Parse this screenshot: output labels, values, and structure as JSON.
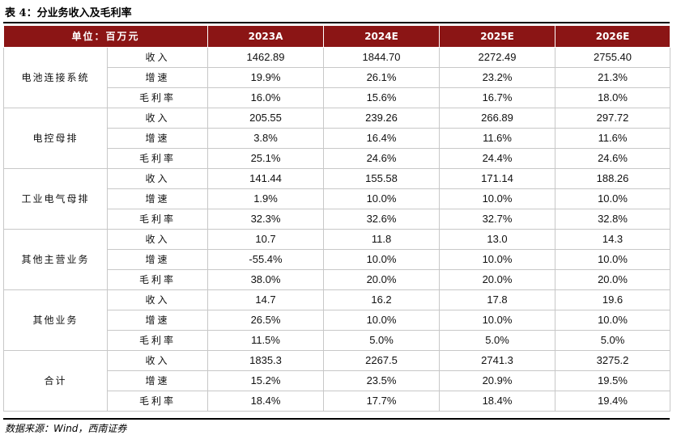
{
  "title": "表 4：分业务收入及毛利率",
  "header": {
    "unit_label": "单位：百万元",
    "years": [
      "2023A",
      "2024E",
      "2025E",
      "2026E"
    ]
  },
  "segments": [
    {
      "name": "电池连接系统",
      "rows": [
        {
          "metric": "收入",
          "values": [
            "1462.89",
            "1844.70",
            "2272.49",
            "2755.40"
          ]
        },
        {
          "metric": "增速",
          "values": [
            "19.9%",
            "26.1%",
            "23.2%",
            "21.3%"
          ]
        },
        {
          "metric": "毛利率",
          "values": [
            "16.0%",
            "15.6%",
            "16.7%",
            "18.0%"
          ]
        }
      ]
    },
    {
      "name": "电控母排",
      "rows": [
        {
          "metric": "收入",
          "values": [
            "205.55",
            "239.26",
            "266.89",
            "297.72"
          ]
        },
        {
          "metric": "增速",
          "values": [
            "3.8%",
            "16.4%",
            "11.6%",
            "11.6%"
          ]
        },
        {
          "metric": "毛利率",
          "values": [
            "25.1%",
            "24.6%",
            "24.4%",
            "24.6%"
          ]
        }
      ]
    },
    {
      "name": "工业电气母排",
      "rows": [
        {
          "metric": "收入",
          "values": [
            "141.44",
            "155.58",
            "171.14",
            "188.26"
          ]
        },
        {
          "metric": "增速",
          "values": [
            "1.9%",
            "10.0%",
            "10.0%",
            "10.0%"
          ]
        },
        {
          "metric": "毛利率",
          "values": [
            "32.3%",
            "32.6%",
            "32.7%",
            "32.8%"
          ]
        }
      ]
    },
    {
      "name": "其他主营业务",
      "rows": [
        {
          "metric": "收入",
          "values": [
            "10.7",
            "11.8",
            "13.0",
            "14.3"
          ]
        },
        {
          "metric": "增速",
          "values": [
            "-55.4%",
            "10.0%",
            "10.0%",
            "10.0%"
          ]
        },
        {
          "metric": "毛利率",
          "values": [
            "38.0%",
            "20.0%",
            "20.0%",
            "20.0%"
          ]
        }
      ]
    },
    {
      "name": "其他业务",
      "rows": [
        {
          "metric": "收入",
          "values": [
            "14.7",
            "16.2",
            "17.8",
            "19.6"
          ]
        },
        {
          "metric": "增速",
          "values": [
            "26.5%",
            "10.0%",
            "10.0%",
            "10.0%"
          ]
        },
        {
          "metric": "毛利率",
          "values": [
            "11.5%",
            "5.0%",
            "5.0%",
            "5.0%"
          ]
        }
      ]
    },
    {
      "name": "合计",
      "rows": [
        {
          "metric": "收入",
          "values": [
            "1835.3",
            "2267.5",
            "2741.3",
            "3275.2"
          ]
        },
        {
          "metric": "增速",
          "values": [
            "15.2%",
            "23.5%",
            "20.9%",
            "19.5%"
          ]
        },
        {
          "metric": "毛利率",
          "values": [
            "18.4%",
            "17.7%",
            "18.4%",
            "19.4%"
          ]
        }
      ]
    }
  ],
  "source": "数据来源：Wind，西南证券",
  "colors": {
    "header_bg": "#8b1515",
    "header_text": "#ffffff",
    "border": "#c8c8c8"
  }
}
